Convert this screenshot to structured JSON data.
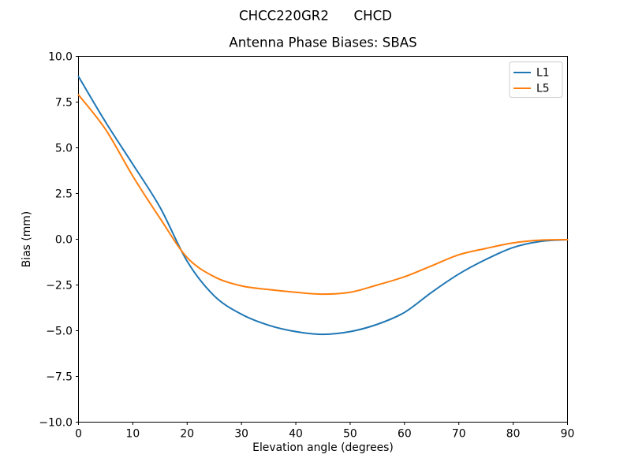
{
  "figure": {
    "suptitle": "CHCC220GR2      CHCD",
    "background_color": "#ffffff",
    "text_color": "#000000"
  },
  "chart_data": {
    "type": "line",
    "title": "Antenna Phase Biases: SBAS",
    "xlabel": "Elevation angle (degrees)",
    "ylabel": "Bias (mm)",
    "xlim": [
      0,
      90
    ],
    "ylim": [
      -10,
      10
    ],
    "grid": false,
    "legend_position": "upper right",
    "x_ticks": [
      0,
      10,
      20,
      30,
      40,
      50,
      60,
      70,
      80,
      90
    ],
    "x_tick_labels": [
      "0",
      "10",
      "20",
      "30",
      "40",
      "50",
      "60",
      "70",
      "80",
      "90"
    ],
    "y_ticks": [
      -10,
      -7.5,
      -5,
      -2.5,
      0,
      2.5,
      5,
      7.5,
      10
    ],
    "y_tick_labels": [
      "−10.0",
      "−7.5",
      "−5.0",
      "−2.5",
      "0.0",
      "2.5",
      "5.0",
      "7.5",
      "10.0"
    ],
    "x": [
      0,
      5,
      10,
      15,
      20,
      25,
      30,
      35,
      40,
      45,
      50,
      55,
      60,
      65,
      70,
      75,
      80,
      85,
      90
    ],
    "series": [
      {
        "name": "L1",
        "color": "#1f77b4",
        "values": [
          8.9,
          6.4,
          4.1,
          1.75,
          -1.2,
          -3.1,
          -4.1,
          -4.7,
          -5.05,
          -5.2,
          -5.05,
          -4.65,
          -4.0,
          -2.9,
          -1.9,
          -1.1,
          -0.45,
          -0.12,
          -0.02
        ]
      },
      {
        "name": "L5",
        "color": "#ff7f0e",
        "values": [
          7.9,
          6.0,
          3.45,
          1.15,
          -1.0,
          -2.05,
          -2.55,
          -2.75,
          -2.9,
          -3.0,
          -2.9,
          -2.5,
          -2.05,
          -1.45,
          -0.85,
          -0.5,
          -0.2,
          -0.05,
          -0.02
        ]
      }
    ]
  }
}
